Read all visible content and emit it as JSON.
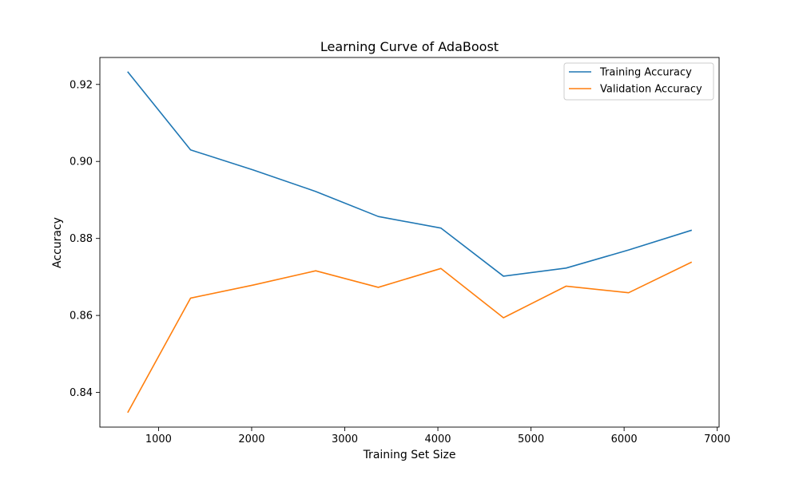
{
  "chart_data": {
    "type": "line",
    "title": "Learning Curve of AdaBoost",
    "xlabel": "Training Set Size",
    "ylabel": "Accuracy",
    "x": [
      672,
      1344,
      2016,
      2688,
      3360,
      4032,
      4704,
      5376,
      6048,
      6720
    ],
    "series": [
      {
        "name": "Training Accuracy",
        "color": "#1f77b4",
        "values": [
          0.9232,
          0.903,
          0.8978,
          0.8922,
          0.8857,
          0.8827,
          0.8702,
          0.8723,
          0.877,
          0.8821
        ]
      },
      {
        "name": "Validation Accuracy",
        "color": "#ff7f0e",
        "values": [
          0.8349,
          0.8645,
          0.8679,
          0.8716,
          0.8673,
          0.8722,
          0.8594,
          0.8676,
          0.8659,
          0.8738
        ]
      }
    ],
    "xlim": [
      370,
      7020
    ],
    "ylim": [
      0.831,
      0.927
    ],
    "xticks": [
      1000,
      2000,
      3000,
      4000,
      5000,
      6000,
      7000
    ],
    "yticks": [
      0.84,
      0.86,
      0.88,
      0.9,
      0.92
    ],
    "xtick_labels": [
      "1000",
      "2000",
      "3000",
      "4000",
      "5000",
      "6000",
      "7000"
    ],
    "ytick_labels": [
      "0.84",
      "0.86",
      "0.88",
      "0.90",
      "0.92"
    ],
    "grid": false,
    "legend_position": "upper right"
  }
}
